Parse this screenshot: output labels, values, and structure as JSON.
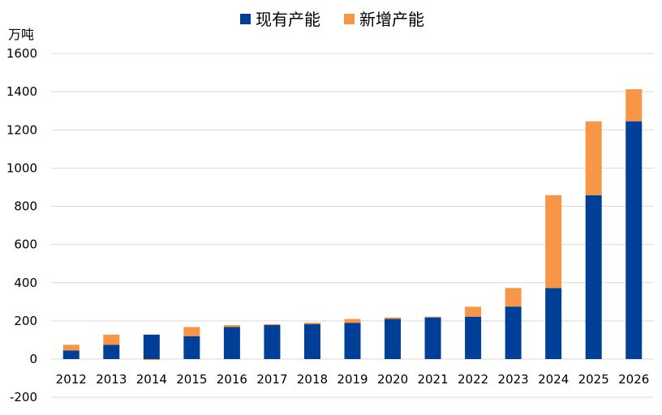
{
  "chart_data": {
    "type": "bar",
    "stacked": true,
    "ylabel": "万吨",
    "ylim": [
      -200,
      1600
    ],
    "yticks": [
      -200,
      0,
      200,
      400,
      600,
      800,
      1000,
      1200,
      1400,
      1600
    ],
    "grid": true,
    "legend_position": "top-center",
    "categories": [
      "2012",
      "2013",
      "2014",
      "2015",
      "2016",
      "2017",
      "2018",
      "2019",
      "2020",
      "2021",
      "2022",
      "2023",
      "2024",
      "2025",
      "2026"
    ],
    "series": [
      {
        "name": "现有产能",
        "color": "#003F98",
        "values": [
          45,
          75,
          128,
          120,
          168,
          178,
          183,
          190,
          210,
          218,
          222,
          275,
          372,
          858,
          1245
        ]
      },
      {
        "name": "新增产能",
        "color": "#F79646",
        "values": [
          30,
          53,
          -5,
          48,
          10,
          5,
          8,
          20,
          8,
          4,
          52,
          97,
          486,
          387,
          168
        ]
      }
    ]
  }
}
